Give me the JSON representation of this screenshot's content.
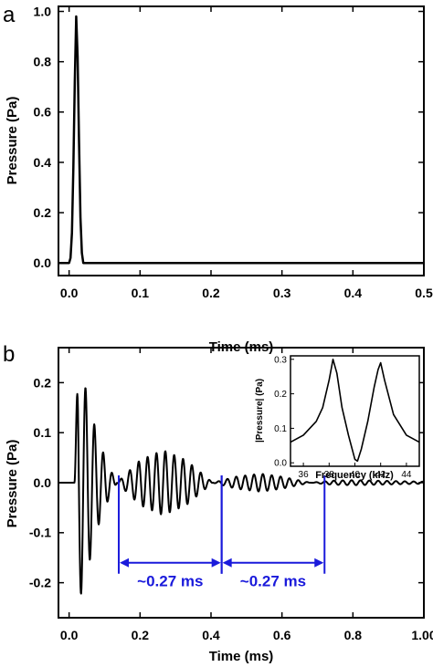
{
  "chart_data": [
    {
      "panel_label": "a",
      "type": "line",
      "xlabel": "Time (ms)",
      "ylabel": "Pressure (Pa)",
      "xlim": [
        -0.015,
        0.5
      ],
      "ylim": [
        -0.05,
        1.02
      ],
      "xticks": [
        0.0,
        0.1,
        0.2,
        0.3,
        0.4,
        0.5
      ],
      "xtick_labels": [
        "0.0",
        "0.1",
        "0.2",
        "0.3",
        "0.4",
        "0.5"
      ],
      "yticks": [
        0.0,
        0.2,
        0.4,
        0.6,
        0.8,
        1.0
      ],
      "ytick_labels": [
        "0.0",
        "0.2",
        "0.4",
        "0.6",
        "0.8",
        "1.0"
      ],
      "grid": false,
      "series": [
        {
          "color": "#000000",
          "x": [
            -0.015,
            0.0,
            0.002,
            0.004,
            0.006,
            0.008,
            0.01,
            0.012,
            0.014,
            0.016,
            0.018,
            0.02,
            0.022,
            0.03,
            0.1,
            0.2,
            0.3,
            0.4,
            0.5
          ],
          "y": [
            0.0,
            0.0,
            0.02,
            0.12,
            0.38,
            0.72,
            0.98,
            0.82,
            0.48,
            0.18,
            0.04,
            0.0,
            0.0,
            0.0,
            0.0,
            0.0,
            0.0,
            0.0,
            0.0
          ]
        }
      ]
    },
    {
      "panel_label": "b",
      "type": "line",
      "xlabel": "Time (ms)",
      "ylabel": "Pressure (Pa)",
      "xlim": [
        -0.03,
        1.0
      ],
      "ylim": [
        -0.27,
        0.27
      ],
      "xticks": [
        0.0,
        0.2,
        0.4,
        0.6,
        0.8,
        1.0
      ],
      "xtick_labels": [
        "0.0",
        "0.2",
        "0.4",
        "0.6",
        "0.8",
        "1.00"
      ],
      "yticks": [
        -0.2,
        -0.1,
        0.0,
        0.1,
        0.2
      ],
      "ytick_labels": [
        "-0.2",
        "-0.1",
        "0.0",
        "0.1",
        "0.2"
      ],
      "grid": false,
      "series": [
        {
          "color": "#000000",
          "description_values": {
            "signal_start": 0.015,
            "carrier_frequency_khz": 40,
            "beat_period_ms": 0.27,
            "envelope_points_t": [
              0.015,
              0.025,
              0.05,
              0.08,
              0.11,
              0.135,
              0.2,
              0.265,
              0.33,
              0.405,
              0.47,
              0.54,
              0.6,
              0.68,
              0.74,
              0.8,
              0.87,
              1.0
            ],
            "envelope_points_a": [
              0.0,
              0.245,
              0.18,
              0.09,
              0.035,
              0.0,
              0.045,
              0.065,
              0.045,
              0.0,
              0.012,
              0.018,
              0.012,
              0.0,
              0.004,
              0.005,
              0.004,
              0.002
            ]
          }
        }
      ],
      "annotations": [
        {
          "text": "~0.27 ms",
          "x_start": 0.14,
          "x_end": 0.43,
          "y": -0.16,
          "color": "#1a1adb"
        },
        {
          "text": "~0.27 ms",
          "x_start": 0.43,
          "x_end": 0.72,
          "y": -0.16,
          "color": "#1a1adb"
        }
      ],
      "inset": {
        "type": "line",
        "xlabel": "Frequency (kHz)",
        "ylabel": "|Pressure| (Pa)",
        "xlim": [
          35,
          45
        ],
        "ylim": [
          -0.01,
          0.31
        ],
        "xticks": [
          36,
          38,
          40,
          42,
          44
        ],
        "xtick_labels": [
          "36",
          "38",
          "40",
          "42",
          "44"
        ],
        "yticks": [
          0.0,
          0.1,
          0.2,
          0.3
        ],
        "ytick_labels": [
          "0.0",
          "0.1",
          "0.2",
          "0.3"
        ],
        "series": [
          {
            "color": "#000000",
            "x": [
              35,
              36,
              37,
              37.5,
              38,
              38.3,
              38.6,
              39,
              39.5,
              40,
              40.2,
              40.5,
              41,
              41.5,
              41.8,
              42,
              42.3,
              43,
              44,
              45
            ],
            "y": [
              0.06,
              0.08,
              0.12,
              0.16,
              0.24,
              0.3,
              0.26,
              0.16,
              0.08,
              0.01,
              0.005,
              0.04,
              0.12,
              0.22,
              0.27,
              0.29,
              0.24,
              0.14,
              0.08,
              0.06
            ]
          }
        ]
      }
    }
  ]
}
